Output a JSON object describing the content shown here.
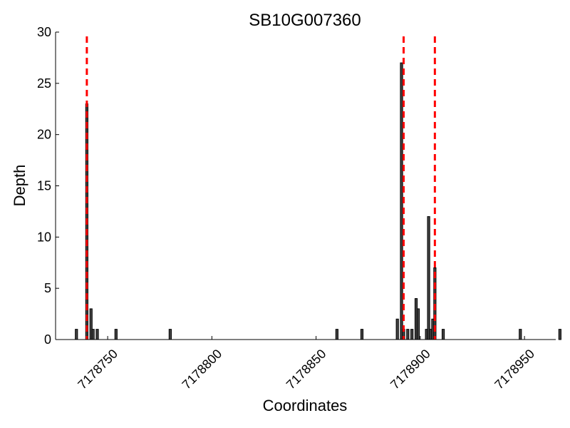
{
  "chart_data": {
    "type": "bar",
    "title": "SB10G007360",
    "xlabel": "Coordinates",
    "ylabel": "Depth",
    "xlim": [
      7178725,
      7178965
    ],
    "ylim": [
      0,
      30
    ],
    "xticks": [
      7178750,
      7178800,
      7178850,
      7178900,
      7178950
    ],
    "yticks": [
      0,
      5,
      10,
      15,
      20,
      25,
      30
    ],
    "grid": false,
    "bars": [
      {
        "x": 7178735,
        "value": 1
      },
      {
        "x": 7178740,
        "value": 23
      },
      {
        "x": 7178742,
        "value": 3
      },
      {
        "x": 7178743,
        "value": 1
      },
      {
        "x": 7178745,
        "value": 1
      },
      {
        "x": 7178754,
        "value": 1
      },
      {
        "x": 7178780,
        "value": 1
      },
      {
        "x": 7178860,
        "value": 1
      },
      {
        "x": 7178872,
        "value": 1
      },
      {
        "x": 7178889,
        "value": 2
      },
      {
        "x": 7178891,
        "value": 27
      },
      {
        "x": 7178892,
        "value": 1
      },
      {
        "x": 7178894,
        "value": 1
      },
      {
        "x": 7178896,
        "value": 1
      },
      {
        "x": 7178898,
        "value": 4
      },
      {
        "x": 7178899,
        "value": 3
      },
      {
        "x": 7178903,
        "value": 1
      },
      {
        "x": 7178904,
        "value": 12
      },
      {
        "x": 7178905,
        "value": 1
      },
      {
        "x": 7178906,
        "value": 2
      },
      {
        "x": 7178907,
        "value": 7
      },
      {
        "x": 7178911,
        "value": 1
      },
      {
        "x": 7178948,
        "value": 1
      },
      {
        "x": 7178967,
        "value": 1
      }
    ],
    "markers": [
      {
        "x": 7178740,
        "style": "dashed",
        "color": "#ff0000"
      },
      {
        "x": 7178892,
        "style": "dashed",
        "color": "#ff0000"
      },
      {
        "x": 7178907,
        "style": "dashed",
        "color": "#ff0000"
      }
    ],
    "bar_color": "#444444",
    "bar_edge_color": "#000000"
  }
}
